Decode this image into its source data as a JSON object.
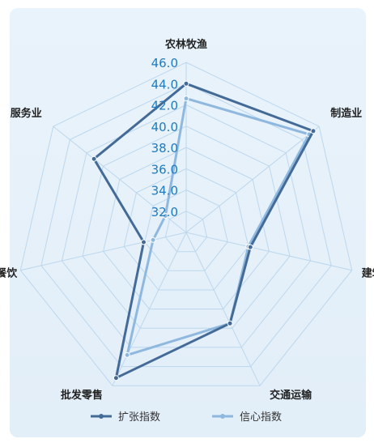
{
  "chart_data": {
    "type": "radar",
    "categories": [
      "农林牧渔",
      "制造业",
      "建筑业",
      "交通运输",
      "批发零售",
      "住宿餐饮",
      "服务业"
    ],
    "axis_ticks": [
      "32.0",
      "34.0",
      "36.0",
      "38.0",
      "40.0",
      "42.0",
      "44.0",
      "46.0"
    ],
    "rlim": [
      30,
      46
    ],
    "series": [
      {
        "name": "扩张指数",
        "values": [
          44.0,
          45.3,
          36.2,
          39.5,
          45.2,
          34.1,
          41.1
        ]
      },
      {
        "name": "信心指数",
        "values": [
          42.6,
          44.8,
          36.0,
          39.5,
          42.8,
          33.2,
          32.5
        ]
      }
    ],
    "legend_position": "bottom",
    "grid": true
  },
  "colors": {
    "series_1": "#446b97",
    "series_2": "#8fb8df",
    "tick_label": "#1e7bbf",
    "grid": "#bcd7ee"
  }
}
